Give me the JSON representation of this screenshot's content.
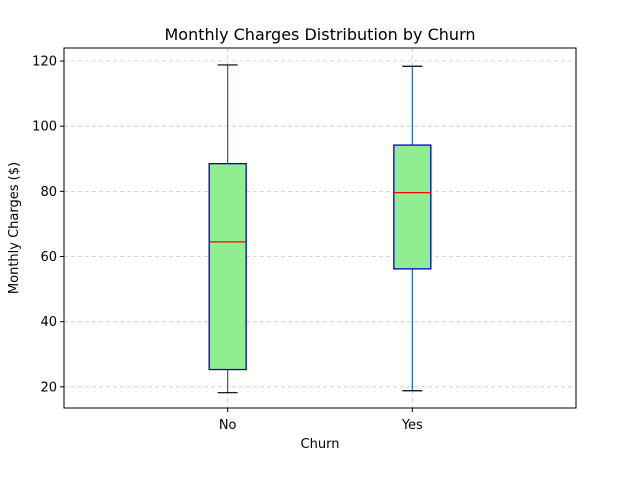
{
  "chart_data": {
    "type": "box",
    "title": "Monthly Charges Distribution by Churn",
    "xlabel": "Churn",
    "ylabel": "Monthly Charges ($)",
    "categories": [
      "No",
      "Yes"
    ],
    "boxes": [
      {
        "category": "No",
        "whisker_low": 18.2,
        "q1": 25.3,
        "median": 64.5,
        "q3": 88.5,
        "whisker_high": 118.8
      },
      {
        "category": "Yes",
        "whisker_low": 18.8,
        "q1": 56.2,
        "median": 79.6,
        "q3": 94.2,
        "whisker_high": 118.4
      }
    ],
    "ylim": [
      13.5,
      124
    ],
    "yticks": [
      20,
      40,
      60,
      80,
      100,
      120
    ],
    "grid": true,
    "grid_style": "dashed",
    "legend": "none",
    "colors": {
      "box_fill": "#90EE90",
      "box_edge": "#0000CD",
      "median": "#FF0000",
      "whisker": "#1f5fbf",
      "cap": "#000000",
      "grid": "#c8c8c8"
    }
  }
}
